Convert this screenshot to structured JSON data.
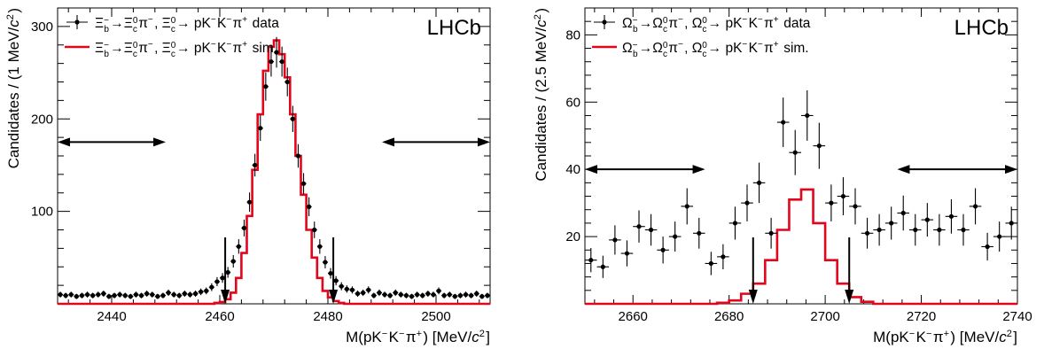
{
  "chart_data": [
    {
      "type": "scatter",
      "xlabel": "M(pK⁻K⁻π⁺) [MeV/c²]",
      "ylabel": "Candidates / (1 MeV/c²)",
      "xlim": [
        2430,
        2510
      ],
      "ylim": [
        0,
        320
      ],
      "xticks": [
        "2440",
        "2460",
        "2480",
        "2500"
      ],
      "yticks": [
        "100",
        "200",
        "300"
      ],
      "watermark": "LHCb",
      "legend_placement": "top-left",
      "series": [
        {
          "name": "Ξᵦ⁻→Ξᶜ⁰π⁻, Ξᶜ⁰→ pK⁻K⁻π⁺ data",
          "style": "points",
          "color": "#000000",
          "x": [
            2430.5,
            2431.5,
            2432.5,
            2433.5,
            2434.5,
            2435.5,
            2436.5,
            2437.5,
            2438.5,
            2439.5,
            2440.5,
            2441.5,
            2442.5,
            2443.5,
            2444.5,
            2445.5,
            2446.5,
            2447.5,
            2448.5,
            2449.5,
            2450.5,
            2451.5,
            2452.5,
            2453.5,
            2454.5,
            2455.5,
            2456.5,
            2457.5,
            2458.5,
            2459.5,
            2460.5,
            2461.5,
            2462.5,
            2463.5,
            2464.5,
            2465.5,
            2466.5,
            2467.5,
            2468.5,
            2469.5,
            2470.5,
            2471.5,
            2472.5,
            2473.5,
            2474.5,
            2475.5,
            2476.5,
            2477.5,
            2478.5,
            2479.5,
            2480.5,
            2481.5,
            2482.5,
            2483.5,
            2484.5,
            2485.5,
            2486.5,
            2487.5,
            2488.5,
            2489.5,
            2490.5,
            2491.5,
            2492.5,
            2493.5,
            2494.5,
            2495.5,
            2496.5,
            2497.5,
            2498.5,
            2499.5,
            2500.5,
            2501.5,
            2502.5,
            2503.5,
            2504.5,
            2505.5,
            2506.5,
            2507.5,
            2508.5,
            2509.5
          ],
          "y": [
            10,
            9,
            10,
            8,
            9,
            10,
            9,
            10,
            11,
            8,
            9,
            10,
            9,
            8,
            10,
            9,
            11,
            10,
            8,
            9,
            12,
            10,
            9,
            11,
            10,
            11,
            13,
            14,
            18,
            24,
            28,
            34,
            46,
            62,
            82,
            110,
            150,
            190,
            235,
            262,
            272,
            262,
            240,
            200,
            160,
            130,
            105,
            80,
            62,
            45,
            33,
            25,
            19,
            16,
            15,
            11,
            12,
            15,
            9,
            12,
            10,
            9,
            12,
            10,
            9,
            8,
            10,
            9,
            11,
            10,
            14,
            9,
            10,
            8,
            9,
            10,
            9,
            11,
            8,
            9
          ]
        },
        {
          "name": "Ξᵦ⁻→Ξᶜ⁰π⁻, Ξᶜ⁰→ pK⁻K⁻π⁺ sim.",
          "style": "histogram",
          "color": "#e3051b",
          "x": [
            2430.5,
            2431.5,
            2432.5,
            2433.5,
            2434.5,
            2435.5,
            2436.5,
            2437.5,
            2438.5,
            2439.5,
            2440.5,
            2441.5,
            2442.5,
            2443.5,
            2444.5,
            2445.5,
            2446.5,
            2447.5,
            2448.5,
            2449.5,
            2450.5,
            2451.5,
            2452.5,
            2453.5,
            2454.5,
            2455.5,
            2456.5,
            2457.5,
            2458.5,
            2459.5,
            2460.5,
            2461.5,
            2462.5,
            2463.5,
            2464.5,
            2465.5,
            2466.5,
            2467.5,
            2468.5,
            2469.5,
            2470.5,
            2471.5,
            2472.5,
            2473.5,
            2474.5,
            2475.5,
            2476.5,
            2477.5,
            2478.5,
            2479.5,
            2480.5,
            2481.5,
            2482.5,
            2483.5,
            2484.5,
            2485.5,
            2486.5,
            2487.5,
            2488.5,
            2489.5,
            2490.5,
            2491.5,
            2492.5,
            2493.5,
            2494.5,
            2495.5,
            2496.5,
            2497.5,
            2498.5,
            2499.5,
            2500.5,
            2501.5,
            2502.5,
            2503.5,
            2504.5,
            2505.5,
            2506.5,
            2507.5,
            2508.5,
            2509.5
          ],
          "y": [
            0,
            0,
            0,
            0,
            0,
            0,
            0,
            0,
            0,
            0,
            0,
            0,
            0,
            0,
            0,
            0,
            0,
            0,
            0,
            0,
            0,
            0,
            0,
            0,
            0,
            0,
            0,
            0,
            0,
            1,
            2,
            5,
            12,
            28,
            55,
            95,
            145,
            205,
            252,
            278,
            285,
            270,
            245,
            205,
            160,
            118,
            80,
            50,
            28,
            14,
            7,
            3,
            1,
            0,
            0,
            0,
            0,
            0,
            0,
            0,
            0,
            0,
            0,
            0,
            0,
            0,
            0,
            0,
            0,
            0,
            0,
            0,
            0,
            0,
            0,
            0,
            0,
            0,
            0,
            0
          ]
        }
      ],
      "signal_window": [
        2461,
        2481
      ],
      "sideband_regions": [
        [
          2430,
          2450
        ],
        [
          2490,
          2510
        ]
      ],
      "sideband_y": 175
    },
    {
      "type": "scatter",
      "xlabel": "M(pK⁻K⁻π⁺) [MeV/c²]",
      "ylabel": "Candidates / (2.5 MeV/c²)",
      "xlim": [
        2650,
        2740
      ],
      "ylim": [
        0,
        88
      ],
      "xticks": [
        "2660",
        "2680",
        "2700",
        "2720",
        "2740"
      ],
      "yticks": [
        "20",
        "40",
        "60",
        "80"
      ],
      "watermark": "LHCb",
      "legend_placement": "top-left",
      "series": [
        {
          "name": "Ωᵦ⁻→Ωᶜ⁰π⁻, Ωᶜ⁰→ pK⁻K⁻π⁺ data",
          "style": "points",
          "color": "#000000",
          "x": [
            2651.25,
            2653.75,
            2656.25,
            2658.75,
            2661.25,
            2663.75,
            2666.25,
            2668.75,
            2671.25,
            2673.75,
            2676.25,
            2678.75,
            2681.25,
            2683.75,
            2686.25,
            2688.75,
            2691.25,
            2693.75,
            2696.25,
            2698.75,
            2701.25,
            2703.75,
            2706.25,
            2708.75,
            2711.25,
            2713.75,
            2716.25,
            2718.75,
            2721.25,
            2723.75,
            2726.25,
            2728.75,
            2731.25,
            2733.75,
            2736.25,
            2738.75
          ],
          "y": [
            13,
            11,
            19,
            15,
            23,
            22,
            16,
            20,
            29,
            21,
            12,
            14,
            24,
            30,
            36,
            21,
            54,
            45,
            56,
            47,
            30,
            32,
            29,
            21,
            22,
            24,
            27,
            22,
            25,
            22,
            26,
            22,
            29,
            17,
            20,
            24
          ]
        },
        {
          "name": "Ωᵦ⁻→Ωᶜ⁰π⁻, Ωᶜ⁰→ pK⁻K⁻π⁺ sim.",
          "style": "histogram",
          "color": "#e3051b",
          "x": [
            2651.25,
            2653.75,
            2656.25,
            2658.75,
            2661.25,
            2663.75,
            2666.25,
            2668.75,
            2671.25,
            2673.75,
            2676.25,
            2678.75,
            2681.25,
            2683.75,
            2686.25,
            2688.75,
            2691.25,
            2693.75,
            2696.25,
            2698.75,
            2701.25,
            2703.75,
            2706.25,
            2708.75,
            2711.25,
            2713.75,
            2716.25,
            2718.75,
            2721.25,
            2723.75,
            2726.25,
            2728.75,
            2731.25,
            2733.75,
            2736.25,
            2738.75
          ],
          "y": [
            0,
            0,
            0,
            0,
            0,
            0,
            0,
            0,
            0,
            0,
            0,
            0.3,
            1,
            3,
            6,
            13,
            22,
            31,
            34,
            24,
            13,
            6,
            2,
            0.6,
            0,
            0,
            0,
            0,
            0,
            0,
            0,
            0,
            0,
            0,
            0,
            0
          ]
        }
      ],
      "signal_window": [
        2685,
        2705
      ],
      "sideband_regions": [
        [
          2650,
          2675
        ],
        [
          2715,
          2740
        ]
      ],
      "sideband_y": 40
    }
  ]
}
